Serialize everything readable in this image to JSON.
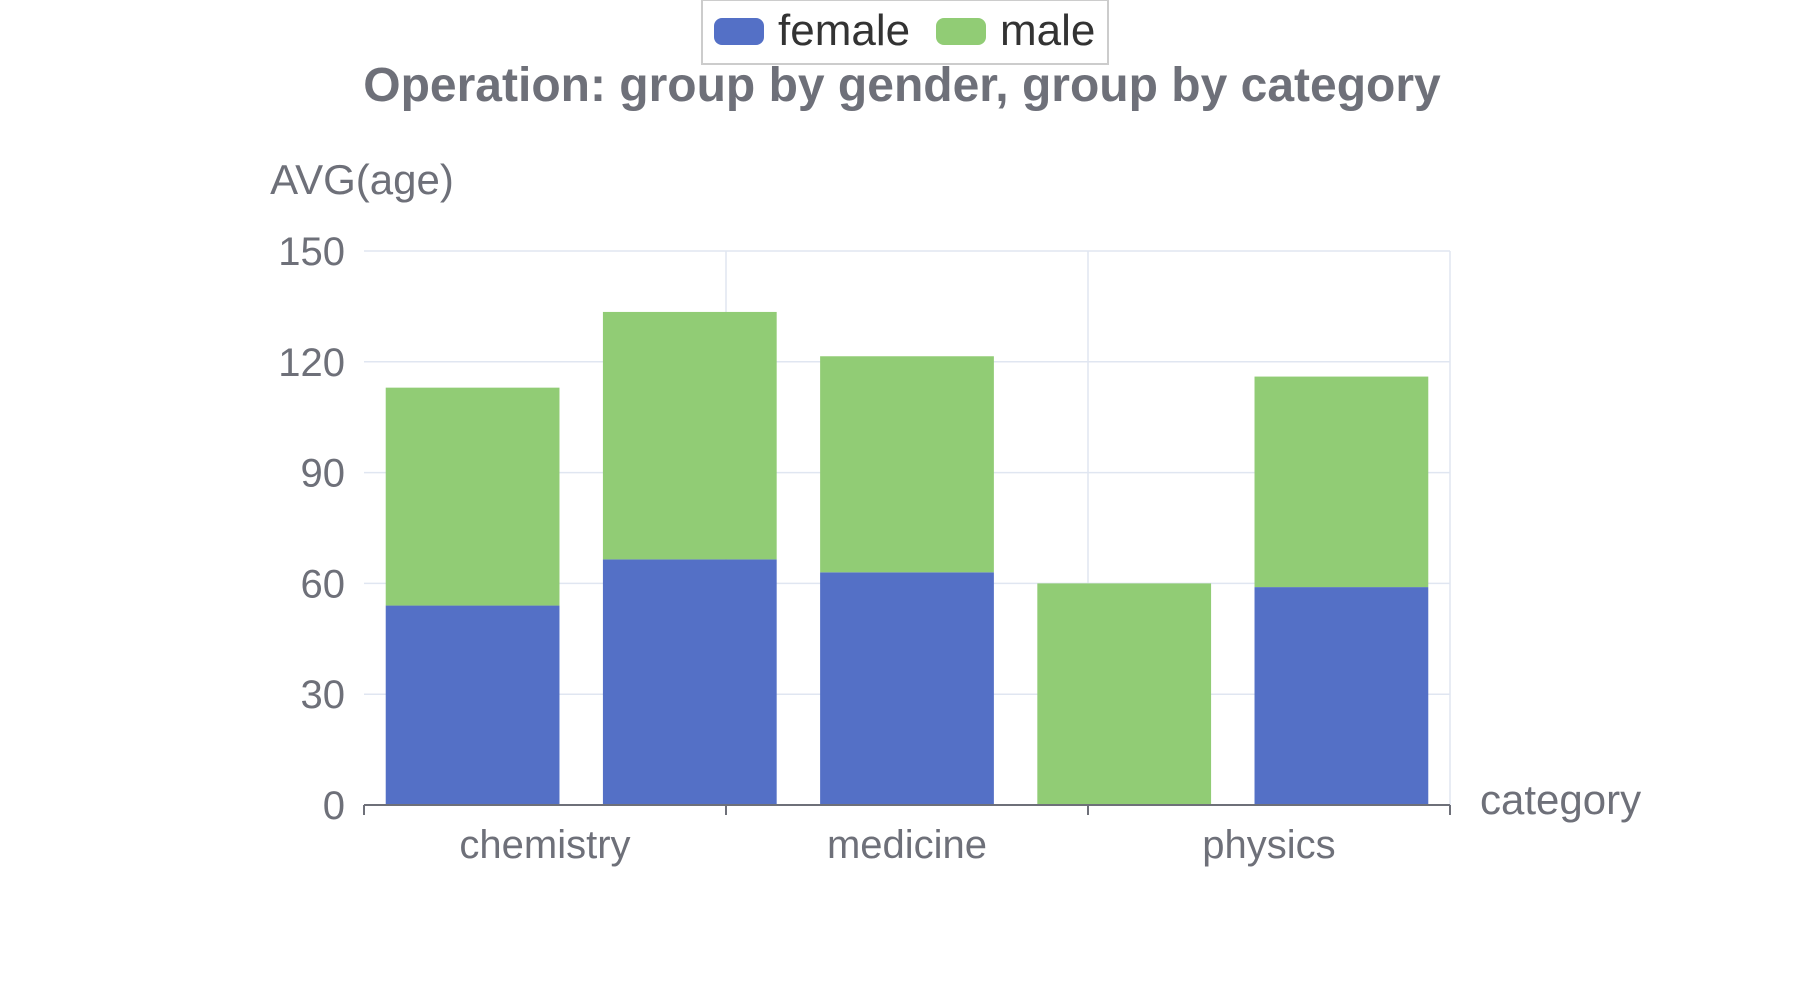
{
  "chart_data": {
    "type": "bar",
    "stacked": true,
    "title": "Operation: group by gender, group by category",
    "xlabel": "category",
    "ylabel": "AVG(age)",
    "ylim": [
      0,
      150
    ],
    "yticks": [
      0,
      30,
      60,
      90,
      120,
      150
    ],
    "x_tick_labels": [
      "chemistry",
      "medicine",
      "physics"
    ],
    "bar_count": 5,
    "legend": {
      "placement": "top-center",
      "entries": [
        "female",
        "male"
      ]
    },
    "grid": true,
    "series": [
      {
        "name": "female",
        "color": "#5470C6",
        "values": [
          54,
          66.5,
          63,
          0,
          59
        ]
      },
      {
        "name": "male",
        "color": "#91CC75",
        "values": [
          59,
          67,
          58.5,
          60,
          57
        ]
      }
    ]
  }
}
